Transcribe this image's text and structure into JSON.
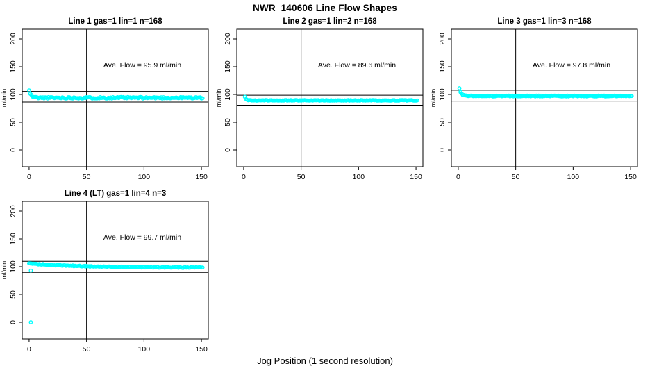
{
  "header": {
    "title": "NWR_140606  Line Flow Shapes"
  },
  "footer": {
    "xlabel": "Jog Position (1 second resolution)"
  },
  "colors": {
    "background": "#FFFFFF",
    "axis": "#000000",
    "text": "#000000",
    "points": "#00FFFF"
  },
  "chart_data": [
    {
      "type": "scatter",
      "title": "Line 1 gas=1 lin=1 n=168",
      "annotation": "Ave. Flow =  95.9  ml/min",
      "ave_flow_ml_min": 95.9,
      "gas": 1,
      "lin": 1,
      "n": 168,
      "ylabel": "ml/min",
      "xlim": [
        0,
        150
      ],
      "ylim": [
        0,
        200
      ],
      "xticks": [
        0,
        50,
        100,
        150
      ],
      "yticks": [
        0,
        50,
        100,
        150,
        200
      ],
      "vline_x": 50,
      "hlines": [
        105.5,
        86.3
      ],
      "grid": false,
      "series": {
        "name": "flow",
        "marker": "circle-open",
        "color": "#00FFFF",
        "x_start": 0,
        "x_end": 151,
        "y_start": 107,
        "y_settle": 94.0,
        "decay_tau": 1.8,
        "jitter": 1.4,
        "seed": 11,
        "extra_points": []
      }
    },
    {
      "type": "scatter",
      "title": "Line 2 gas=1 lin=2 n=168",
      "annotation": "Ave. Flow =  89.6  ml/min",
      "ave_flow_ml_min": 89.6,
      "gas": 1,
      "lin": 2,
      "n": 168,
      "ylabel": "ml/min",
      "xlim": [
        0,
        150
      ],
      "ylim": [
        0,
        200
      ],
      "xticks": [
        0,
        50,
        100,
        150
      ],
      "yticks": [
        0,
        50,
        100,
        150,
        200
      ],
      "vline_x": 50,
      "hlines": [
        98.6,
        80.6
      ],
      "grid": false,
      "series": {
        "name": "flow",
        "marker": "circle-open",
        "color": "#00FFFF",
        "x_start": 1,
        "x_end": 151,
        "y_start": 96,
        "y_settle": 89.3,
        "decay_tau": 1.2,
        "jitter": 0.55,
        "seed": 22,
        "extra_points": []
      }
    },
    {
      "type": "scatter",
      "title": "Line 3 gas=1 lin=3 n=168",
      "annotation": "Ave. Flow =  97.8  ml/min",
      "ave_flow_ml_min": 97.8,
      "gas": 1,
      "lin": 3,
      "n": 168,
      "ylabel": "ml/min",
      "xlim": [
        0,
        150
      ],
      "ylim": [
        0,
        200
      ],
      "xticks": [
        0,
        50,
        100,
        150
      ],
      "yticks": [
        0,
        50,
        100,
        150,
        200
      ],
      "vline_x": 50,
      "hlines": [
        107.6,
        88.0
      ],
      "grid": false,
      "series": {
        "name": "flow",
        "marker": "circle-open",
        "color": "#00FFFF",
        "x_start": 1,
        "x_end": 151,
        "y_start": 110.5,
        "y_settle": 97.2,
        "decay_tau": 1.6,
        "jitter": 0.8,
        "seed": 33,
        "extra_points": [
          [
            2,
            104
          ]
        ]
      }
    },
    {
      "type": "scatter",
      "title": "Line 4 (LT) gas=1 lin=4 n=3",
      "annotation": "Ave. Flow =  99.7  ml/min",
      "ave_flow_ml_min": 99.7,
      "gas": 1,
      "lin": 4,
      "n": 3,
      "ylabel": "ml/min",
      "xlim": [
        0,
        150
      ],
      "ylim": [
        0,
        200
      ],
      "xticks": [
        0,
        50,
        100,
        150
      ],
      "yticks": [
        0,
        50,
        100,
        150,
        200
      ],
      "vline_x": 50,
      "hlines": [
        109.7,
        89.7
      ],
      "grid": false,
      "series": {
        "name": "flow",
        "marker": "circle-open",
        "color": "#00FFFF",
        "x_start": 0,
        "x_end": 151,
        "y_start": 106,
        "y_settle": 98.2,
        "decay_tau": 45,
        "jitter": 0.8,
        "seed": 44,
        "extra_points": [
          [
            1.5,
            93
          ],
          [
            1.5,
            0
          ]
        ]
      }
    }
  ]
}
